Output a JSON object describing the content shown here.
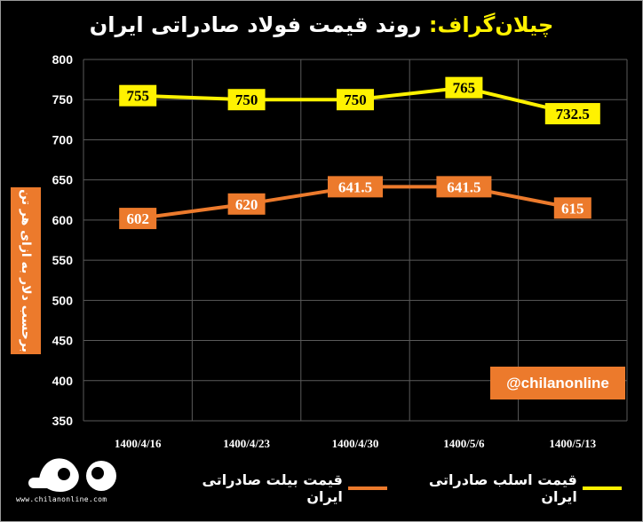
{
  "header": {
    "brand": "چیلان‌گراف:",
    "title": "روند قیمت فولاد صادراتی ایران"
  },
  "watermark": {
    "handle": "@chilanonline",
    "site": "www.chilanonline.com"
  },
  "colors": {
    "slab": "#fff200",
    "billet": "#ec7a2c",
    "grid": "#5a5a5a"
  },
  "chart_data": {
    "type": "line",
    "categories": [
      "1400/4/16",
      "1400/4/23",
      "1400/4/30",
      "1400/5/6",
      "1400/5/13"
    ],
    "ylabel": "برحسب دلار به ازای هر تن",
    "ylim": [
      350,
      800
    ],
    "yticks": [
      350,
      400,
      450,
      500,
      550,
      600,
      650,
      700,
      750,
      800
    ],
    "grid": true,
    "legend_position": "bottom",
    "series": [
      {
        "name": "قیمت اسلب صادراتی ایران",
        "values": [
          755,
          750,
          750,
          765,
          732.5
        ],
        "labels": [
          "755",
          "750",
          "750",
          "765",
          "732.5"
        ]
      },
      {
        "name": "قیمت بیلت صادراتی ایران",
        "values": [
          602,
          620,
          641.5,
          641.5,
          615
        ],
        "labels": [
          "602",
          "620",
          "641.5",
          "641.5",
          "615"
        ]
      }
    ]
  }
}
